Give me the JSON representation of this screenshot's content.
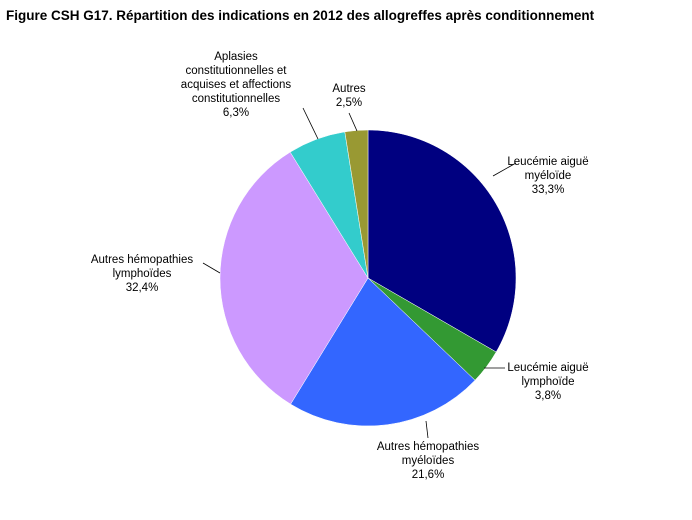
{
  "chart_data": {
    "type": "pie",
    "title": "Figure CSH G17. Répartition des indications en 2012 des allogreffes après conditionnement",
    "start": "12 o'clock",
    "direction": "clockwise",
    "slices": [
      {
        "lines": [
          "Leucémie aiguë",
          "myéloïde"
        ],
        "pct_label": "33,3%",
        "value": 33.3,
        "color": "#000080"
      },
      {
        "lines": [
          "Leucémie aiguë",
          "lymphoïde"
        ],
        "pct_label": "3,8%",
        "value": 3.8,
        "color": "#339933"
      },
      {
        "lines": [
          "Autres hémopathies",
          "myéloïdes"
        ],
        "pct_label": "21,6%",
        "value": 21.6,
        "color": "#3366ff"
      },
      {
        "lines": [
          "Autres hémopathies",
          "lymphoïdes"
        ],
        "pct_label": "32,4%",
        "value": 32.4,
        "color": "#cc99ff"
      },
      {
        "lines": [
          "Aplasies",
          "constitutionnelles et",
          "acquises et affections",
          "constitutionnelles"
        ],
        "pct_label": "6,3%",
        "value": 6.3,
        "color": "#33cccc"
      },
      {
        "lines": [
          "Autres"
        ],
        "pct_label": "2,5%",
        "value": 2.5,
        "color": "#999933"
      }
    ]
  }
}
